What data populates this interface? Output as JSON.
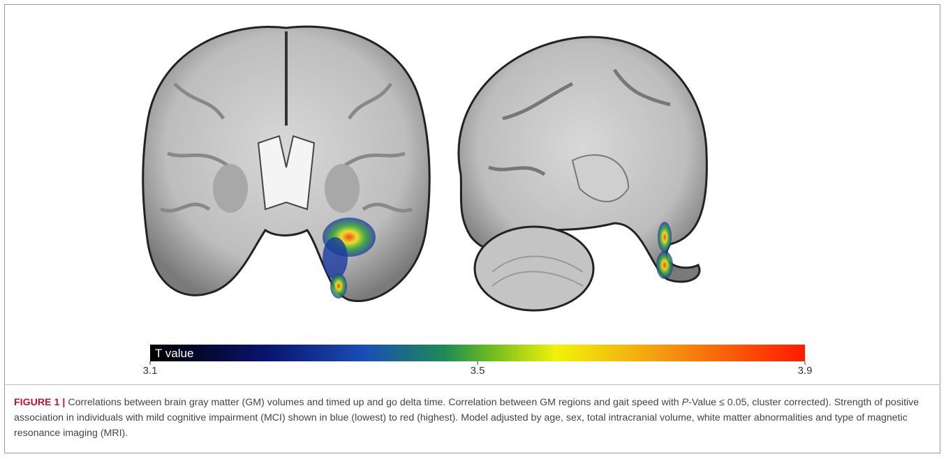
{
  "figure": {
    "colorbar": {
      "label": "T value",
      "lim": [
        3.1,
        3.9
      ],
      "ticks": [
        3.1,
        3.5,
        3.9
      ]
    },
    "caption": {
      "label": "FIGURE 1",
      "separator": "|",
      "text_before_italic": "Correlations between brain gray matter (GM) volumes and timed up and go delta time. Correlation between GM regions and gait speed with ",
      "italic": "P",
      "text_after_italic": "-Value ≤ 0.05, cluster corrected). Strength of positive association in individuals with mild cognitive impairment (MCI) shown in blue (lowest) to red (highest). Model adjusted by age, sex, total intracranial volume, white matter abnormalities and type of magnetic resonance imaging (MRI)."
    }
  }
}
